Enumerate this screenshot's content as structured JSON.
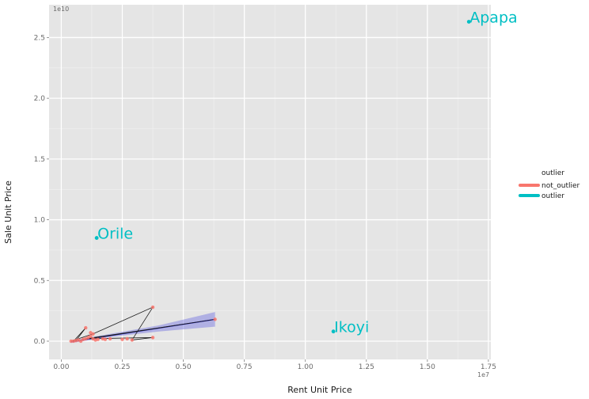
{
  "chart_data": {
    "type": "scatter",
    "xlabel": "Rent Unit Price",
    "ylabel": "Sale Unit Price",
    "x_exponent_label": "1e7",
    "y_exponent_label": "1e10",
    "xlim": [
      -0.05,
      1.76
    ],
    "ylim": [
      -0.15,
      2.77
    ],
    "x_ticks": [
      0.0,
      0.25,
      0.5,
      0.75,
      1.0,
      1.25,
      1.5,
      1.75
    ],
    "x_tick_labels": [
      "0.00",
      "0.25",
      "0.50",
      "0.75",
      "1.00",
      "1.25",
      "1.50",
      "1.75"
    ],
    "y_ticks": [
      0.0,
      0.5,
      1.0,
      1.5,
      2.0,
      2.5
    ],
    "y_tick_labels": [
      "0.0",
      "0.5",
      "1.0",
      "1.5",
      "2.0",
      "2.5"
    ],
    "grid": true,
    "legend": {
      "title": "outlier",
      "position": "right",
      "entries": [
        {
          "label": "not_outlier",
          "color": "#f8766d"
        },
        {
          "label": "outlier",
          "color": "#00bfc4"
        }
      ]
    },
    "series": [
      {
        "name": "not_outlier",
        "color": "#f8766d",
        "points": [
          [
            0.04,
            0.0
          ],
          [
            0.05,
            0.0
          ],
          [
            0.06,
            0.005
          ],
          [
            0.07,
            0.01
          ],
          [
            0.08,
            0.0
          ],
          [
            0.09,
            0.015
          ],
          [
            0.1,
            0.02
          ],
          [
            0.1,
            0.11
          ],
          [
            0.11,
            0.03
          ],
          [
            0.12,
            0.07
          ],
          [
            0.12,
            0.04
          ],
          [
            0.13,
            0.06
          ],
          [
            0.13,
            0.02
          ],
          [
            0.14,
            0.01
          ],
          [
            0.15,
            0.015
          ],
          [
            0.17,
            0.02
          ],
          [
            0.18,
            0.015
          ],
          [
            0.2,
            0.02
          ],
          [
            0.25,
            0.015
          ],
          [
            0.27,
            0.02
          ],
          [
            0.29,
            0.01
          ],
          [
            0.375,
            0.28
          ],
          [
            0.375,
            0.03
          ],
          [
            0.63,
            0.18
          ]
        ]
      },
      {
        "name": "outlier",
        "color": "#00bfc4",
        "points": [
          {
            "x": 0.145,
            "y": 0.85,
            "label": "Orile"
          },
          {
            "x": 1.115,
            "y": 0.08,
            "label": "Ikoyi"
          },
          {
            "x": 1.67,
            "y": 2.63,
            "label": "Apapa"
          }
        ]
      }
    ],
    "connecting_path": [
      [
        0.04,
        0.0
      ],
      [
        0.13,
        0.06
      ],
      [
        0.375,
        0.28
      ],
      [
        0.29,
        0.01
      ],
      [
        0.375,
        0.03
      ],
      [
        0.1,
        0.02
      ],
      [
        0.63,
        0.18
      ],
      [
        0.05,
        0.0
      ],
      [
        0.1,
        0.11
      ],
      [
        0.06,
        0.005
      ]
    ],
    "smooth": {
      "color": "#1f1fd6",
      "band_color": "#6f6fe0",
      "line": [
        [
          0.04,
          -0.005
        ],
        [
          0.63,
          0.18
        ]
      ],
      "band_upper": [
        [
          0.04,
          0.005
        ],
        [
          0.2,
          0.06
        ],
        [
          0.4,
          0.13
        ],
        [
          0.63,
          0.24
        ]
      ],
      "band_lower": [
        [
          0.04,
          -0.015
        ],
        [
          0.2,
          0.035
        ],
        [
          0.4,
          0.08
        ],
        [
          0.63,
          0.12
        ]
      ]
    }
  }
}
